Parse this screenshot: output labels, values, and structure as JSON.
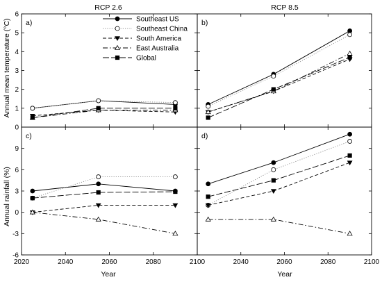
{
  "chart_data": {
    "type": "line",
    "column_titles": [
      "RCP 2.6",
      "RCP 8.5"
    ],
    "xlabel": "Year",
    "xlim": [
      2020,
      2100
    ],
    "x_ticks": [
      "2020",
      "2040",
      "2060",
      "2080",
      "2100"
    ],
    "series_styles": [
      {
        "name": "Southeast US",
        "marker": "circle-filled",
        "dash": "solid",
        "color": "#000000"
      },
      {
        "name": "Southeast China",
        "marker": "circle-open",
        "dash": "dotted",
        "color": "#8c8c8c"
      },
      {
        "name": "South America",
        "marker": "triangle-down-filled",
        "dash": "dashed",
        "color": "#000000"
      },
      {
        "name": "East Australia",
        "marker": "triangle-up-open",
        "dash": "dashdot",
        "color": "#000000"
      },
      {
        "name": "Global",
        "marker": "square-filled",
        "dash": "longdash",
        "color": "#000000"
      }
    ],
    "rows": [
      {
        "ylabel": "Annual mean temperature (°C)",
        "ylim": [
          0,
          6
        ],
        "y_ticks": [
          "0",
          "1",
          "2",
          "3",
          "4",
          "5",
          "6"
        ],
        "panels": [
          {
            "label": "a)",
            "x": [
              2025,
              2055,
              2090
            ],
            "series": [
              {
                "name": "Southeast US",
                "values": [
                  1.0,
                  1.4,
                  1.2
                ]
              },
              {
                "name": "Southeast China",
                "values": [
                  1.0,
                  1.4,
                  1.3
                ]
              },
              {
                "name": "South America",
                "values": [
                  0.6,
                  0.9,
                  0.8
                ]
              },
              {
                "name": "East Australia",
                "values": [
                  0.5,
                  0.9,
                  0.9
                ]
              },
              {
                "name": "Global",
                "values": [
                  0.5,
                  1.0,
                  1.0
                ]
              }
            ]
          },
          {
            "label": "b)",
            "x": [
              2025,
              2055,
              2090
            ],
            "series": [
              {
                "name": "Southeast US",
                "values": [
                  1.2,
                  2.8,
                  5.1
                ]
              },
              {
                "name": "Southeast China",
                "values": [
                  1.1,
                  2.7,
                  4.9
                ]
              },
              {
                "name": "South America",
                "values": [
                  0.8,
                  1.9,
                  3.6
                ]
              },
              {
                "name": "East Australia",
                "values": [
                  0.8,
                  1.9,
                  3.9
                ]
              },
              {
                "name": "Global",
                "values": [
                  0.5,
                  2.0,
                  3.7
                ]
              }
            ]
          }
        ]
      },
      {
        "ylabel": "Annual rainfall (%)",
        "ylim": [
          -6,
          12
        ],
        "y_ticks": [
          "-6",
          "-3",
          "0",
          "3",
          "6",
          "9"
        ],
        "panels": [
          {
            "label": "c)",
            "x": [
              2025,
              2055,
              2090
            ],
            "series": [
              {
                "name": "Southeast US",
                "values": [
                  3,
                  4,
                  3
                ]
              },
              {
                "name": "Southeast China",
                "values": [
                  2,
                  5,
                  5
                ]
              },
              {
                "name": "South America",
                "values": [
                  0,
                  1,
                  1
                ]
              },
              {
                "name": "East Australia",
                "values": [
                  0,
                  -1,
                  -3
                ]
              },
              {
                "name": "Global",
                "values": [
                  2,
                  2.8,
                  2.9
                ]
              }
            ]
          },
          {
            "label": "d)",
            "x": [
              2025,
              2055,
              2090
            ],
            "series": [
              {
                "name": "Southeast US",
                "values": [
                  4,
                  7,
                  11
                ]
              },
              {
                "name": "Southeast China",
                "values": [
                  1,
                  6,
                  10
                ]
              },
              {
                "name": "South America",
                "values": [
                  1,
                  3,
                  7
                ]
              },
              {
                "name": "East Australia",
                "values": [
                  -1,
                  -1,
                  -3
                ]
              },
              {
                "name": "Global",
                "values": [
                  2.2,
                  4.5,
                  8
                ]
              }
            ]
          }
        ]
      }
    ],
    "legend": {
      "placement": "top-left panel, upper-right",
      "entries": [
        "Southeast US",
        "Southeast China",
        "South America",
        "East Australia",
        "Global"
      ]
    }
  }
}
